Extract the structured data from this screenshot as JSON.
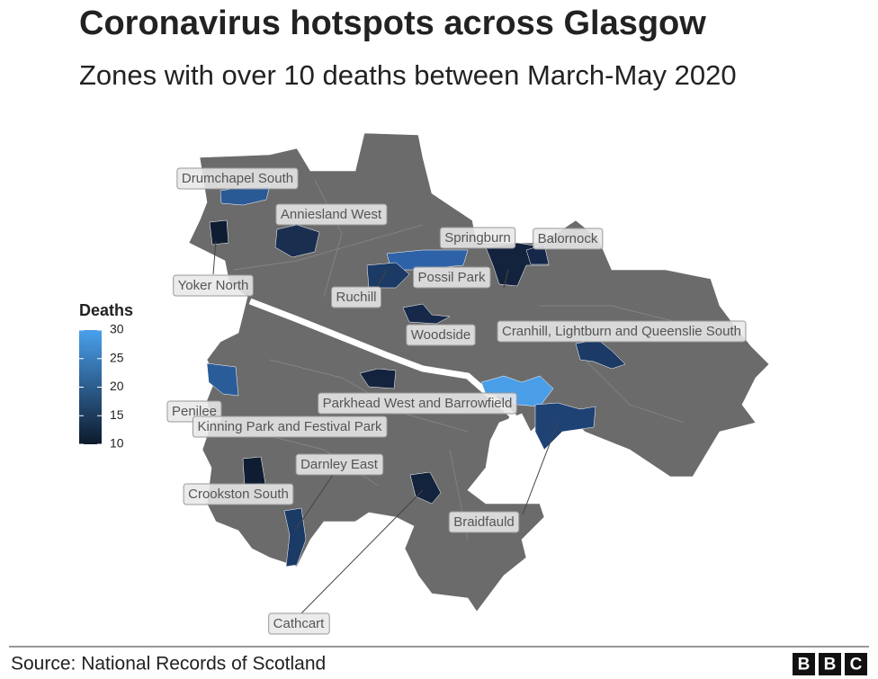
{
  "title": "Coronavirus hotspots across Glasgow",
  "subtitle": "Zones with over 10 deaths between March-May 2020",
  "legend": {
    "title": "Deaths",
    "range": [
      10,
      30
    ],
    "ticks": [
      10,
      15,
      20,
      25,
      30
    ],
    "colors": [
      "#0d1a2c",
      "#4aa0ec"
    ]
  },
  "zones": [
    {
      "label": "Drumchapel South",
      "color": "#2a5a96"
    },
    {
      "label": "Anniesland West",
      "color": "#1a2f50"
    },
    {
      "label": "Yoker North",
      "color": "#0f1d33"
    },
    {
      "label": "Springburn",
      "color": "#14233d"
    },
    {
      "label": "Balornock",
      "color": "#16284a"
    },
    {
      "label": "Possil Park",
      "color": "#2e62a8"
    },
    {
      "label": "Ruchill",
      "color": "#1b3a66"
    },
    {
      "label": "Woodside",
      "color": "#17294a"
    },
    {
      "label": "Cranhill, Lightburn and Queenslie South",
      "color": "#1b3a66"
    },
    {
      "label": "Parkhead West and Barrowfield",
      "color": "#4a9ee8"
    },
    {
      "label": "Penilee",
      "color": "#2b5c9a"
    },
    {
      "label": "Kinning Park and Festival Park",
      "color": "#14233d"
    },
    {
      "label": "Darnley East",
      "color": "#1b3a66"
    },
    {
      "label": "Crookston South",
      "color": "#0f1d33"
    },
    {
      "label": "Braidfauld",
      "color": "#1f4275"
    },
    {
      "label": "Cathcart",
      "color": "#14233d"
    }
  ],
  "source": "Source: National Records of Scotland",
  "logo": [
    "B",
    "B",
    "C"
  ]
}
